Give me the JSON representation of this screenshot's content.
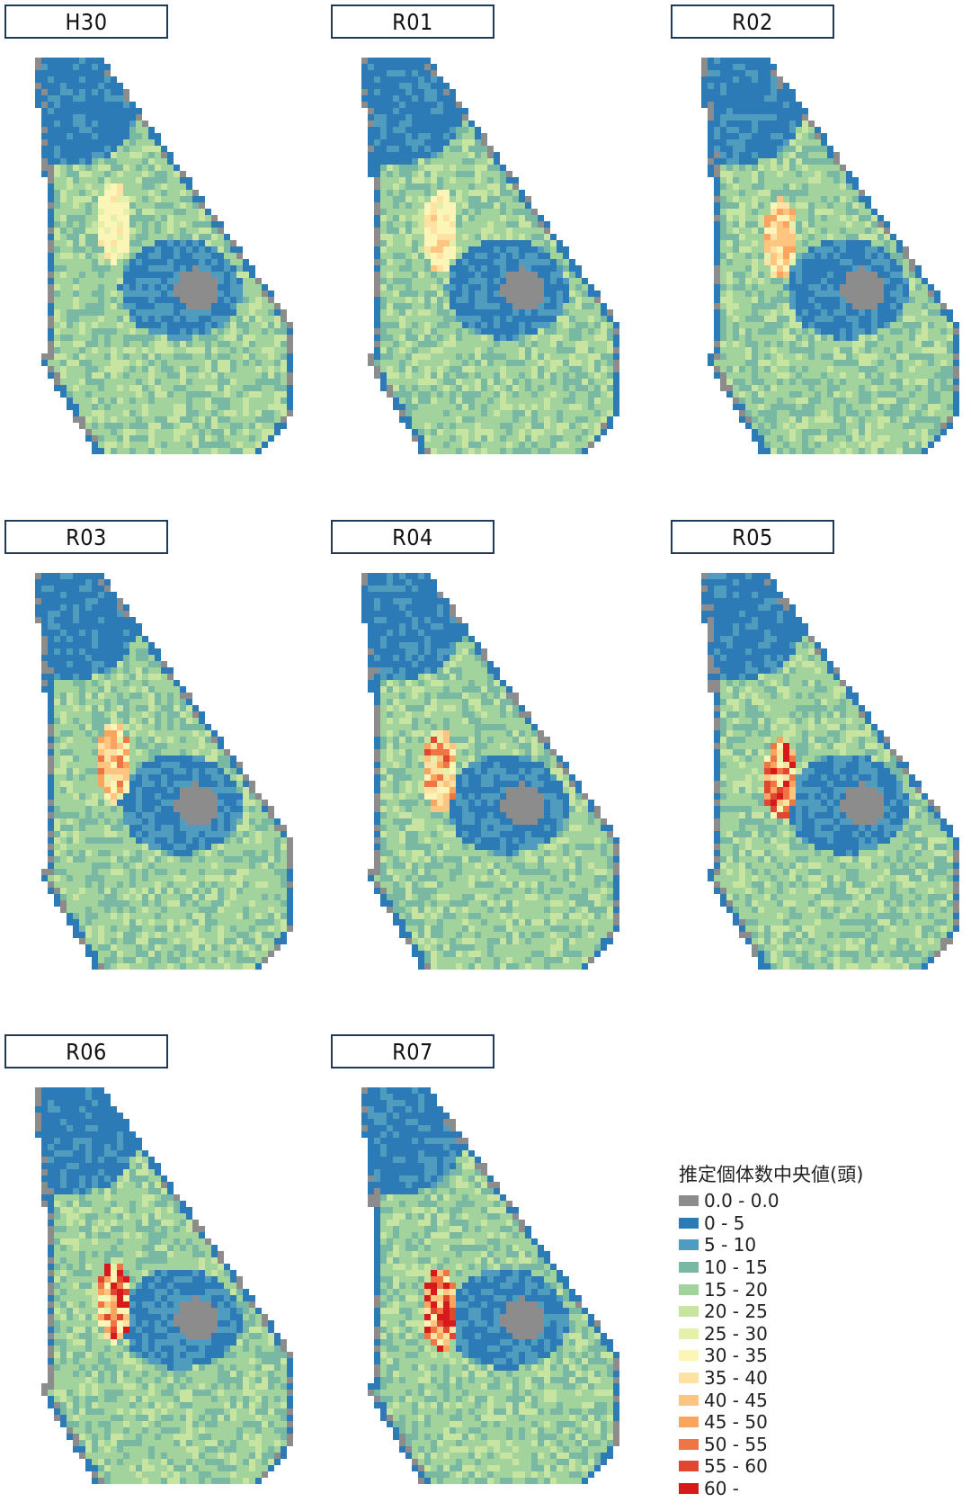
{
  "panels": [
    {
      "label": "H30"
    },
    {
      "label": "R01"
    },
    {
      "label": "R02"
    },
    {
      "label": "R03"
    },
    {
      "label": "R04"
    },
    {
      "label": "R05"
    },
    {
      "label": "R06"
    },
    {
      "label": "R07"
    }
  ],
  "legend": {
    "title": "推定個体数中央値(頭)",
    "items": [
      {
        "label": "0.0 - 0.0",
        "color": "#8c8c8c"
      },
      {
        "label": "0 - 5",
        "color": "#2c7bb6"
      },
      {
        "label": "5 - 10",
        "color": "#4f9cbf"
      },
      {
        "label": "10 - 15",
        "color": "#79b8a3"
      },
      {
        "label": "15 - 20",
        "color": "#a3d39c"
      },
      {
        "label": "20 - 25",
        "color": "#c7e5a0"
      },
      {
        "label": "25 - 30",
        "color": "#e3f1aa"
      },
      {
        "label": "30 - 35",
        "color": "#fbf5b8"
      },
      {
        "label": "35 - 40",
        "color": "#fde2a4"
      },
      {
        "label": "40 - 45",
        "color": "#fdc580"
      },
      {
        "label": "45 - 50",
        "color": "#f9a45f"
      },
      {
        "label": "50 - 55",
        "color": "#ef7545"
      },
      {
        "label": "55 - 60",
        "color": "#e04731"
      },
      {
        "label": "60 -",
        "color": "#d7191c"
      }
    ]
  }
}
